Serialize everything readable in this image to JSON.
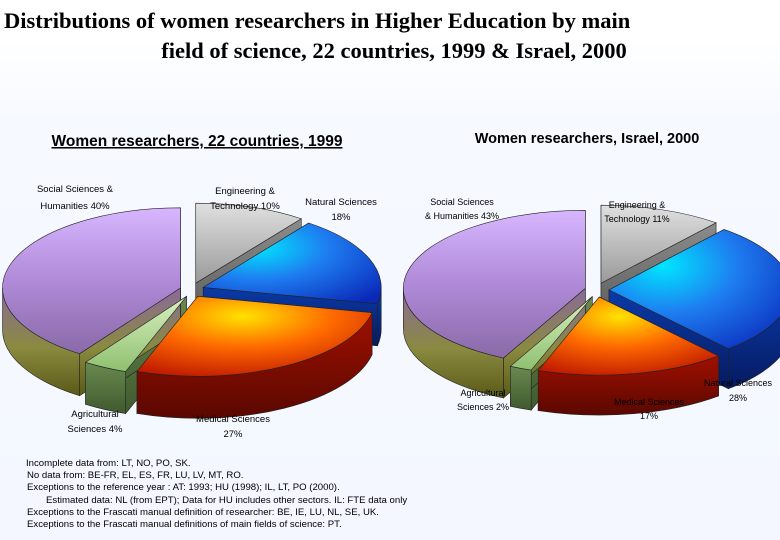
{
  "title": {
    "line1": "Distributions of women researchers in Higher Education by main",
    "line2": "field of science, 22 countries, 1999 & Israel, 2000"
  },
  "chart_data": [
    {
      "type": "pie",
      "title": "Women researchers, 22 countries, 1999",
      "unit": "%",
      "slices": [
        {
          "label": "Engineering & Technology 10%",
          "value": 10,
          "color": "#b4b4b4"
        },
        {
          "label": "Natural Sciences 18%",
          "value": 18,
          "color": "#1f5bd8"
        },
        {
          "label": "Medical Sciences 27%",
          "value": 27,
          "color": "#d84808"
        },
        {
          "label": "Agricultural Sciences 4%",
          "value": 4,
          "color": "#a9d08e"
        },
        {
          "label": "Social Sciences & Humanities 40%",
          "value": 40,
          "color": "#b48fe0"
        }
      ]
    },
    {
      "type": "pie",
      "title": "Women researchers, Israel, 2000",
      "unit": "%",
      "slices": [
        {
          "label": "Engineering & Technology 11%",
          "value": 11,
          "color": "#b4b4b4"
        },
        {
          "label": "Natural Sciences 28%",
          "value": 28,
          "color": "#1f5bd8"
        },
        {
          "label": "Medical Sciences 17%",
          "value": 17,
          "color": "#d84808"
        },
        {
          "label": "Agricultural Sciences 2%",
          "value": 2,
          "color": "#a9d08e"
        },
        {
          "label": "Social Sciences & Humanities 43%",
          "value": 43,
          "color": "#b48fe0"
        }
      ]
    }
  ],
  "notes": [
    "Incomplete data from: LT, NO, PO, SK.",
    "No data from: BE-FR, EL, ES, FR, LU, LV, MT, RO.",
    "Exceptions to the reference year : AT: 1993; HU (1998); IL, LT, PO (2000).",
    "Estimated data: NL (from EPT); Data for HU includes other sectors. IL: FTE data only",
    "Exceptions to the Frascati manual definition of researcher: BE, IE, LU, NL, SE, UK.",
    "Exceptions to the Frascati manual definitions of main fields of science: PT."
  ]
}
